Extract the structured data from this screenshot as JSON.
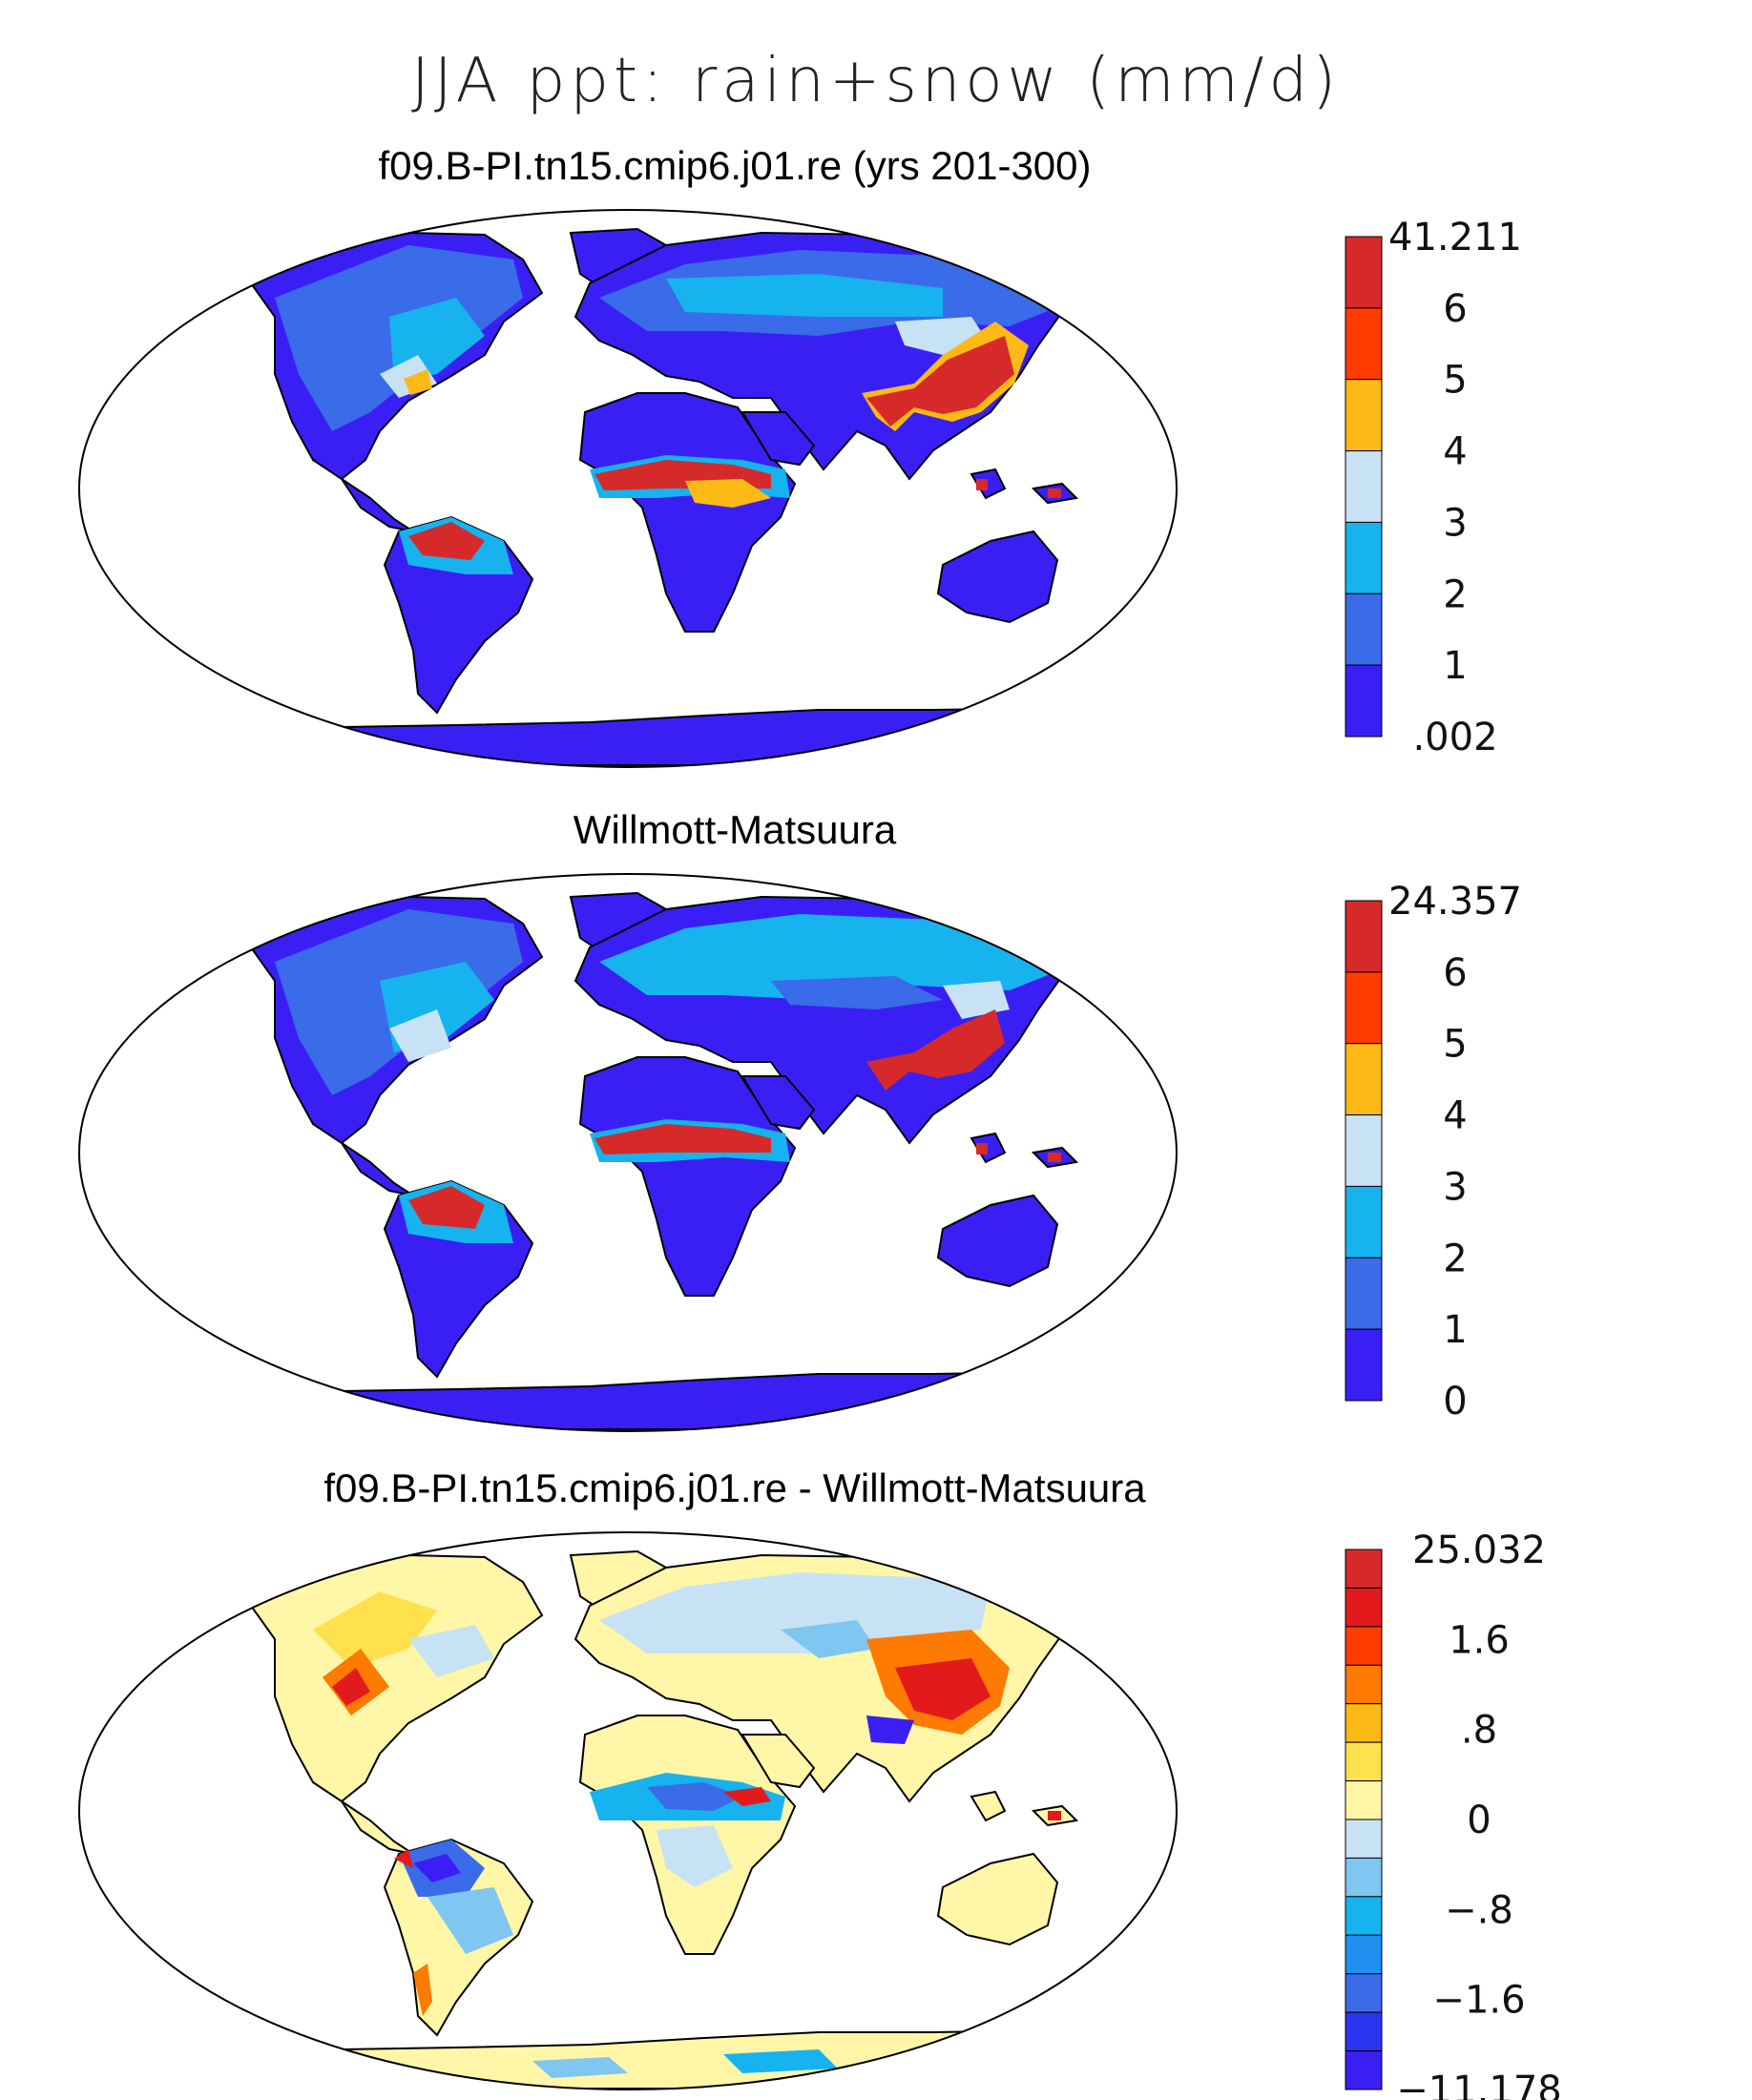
{
  "figure": {
    "title": "JJA ppt: rain+snow (mm/d)"
  },
  "panels": [
    {
      "title": "f09.B-PI.tn15.cmip6.j01.re (yrs 201-300)",
      "colorbar": {
        "labels": [
          "41.211",
          "6",
          "5",
          "4",
          "3",
          "2",
          "1",
          ".002"
        ],
        "colors": [
          "#d62a2a",
          "#ff3c00",
          "#fdb916",
          "#c8e2f5",
          "#16b3ef",
          "#3a6be8",
          "#3a1ff5"
        ]
      }
    },
    {
      "title": "Willmott-Matsuura",
      "colorbar": {
        "labels": [
          "24.357",
          "6",
          "5",
          "4",
          "3",
          "2",
          "1",
          "0"
        ],
        "colors": [
          "#d62a2a",
          "#ff3c00",
          "#fdb916",
          "#c8e2f5",
          "#16b3ef",
          "#3a6be8",
          "#3a1ff5"
        ]
      }
    },
    {
      "title": "f09.B-PI.tn15.cmip6.j01.re - Willmott-Matsuura",
      "colorbar": {
        "labels": [
          "25.032",
          "1.6",
          ".8",
          "0",
          "−.8",
          "−1.6",
          "−11.178"
        ],
        "colors": [
          "#d62a2a",
          "#e31a1c",
          "#ff3c00",
          "#ff7a00",
          "#fdb916",
          "#ffe14d",
          "#fff6a8",
          "#c8e2f5",
          "#7fc6f0",
          "#16b3ef",
          "#1f8ff0",
          "#3a6be8",
          "#2a35f0",
          "#3a1ff5"
        ]
      }
    }
  ]
}
